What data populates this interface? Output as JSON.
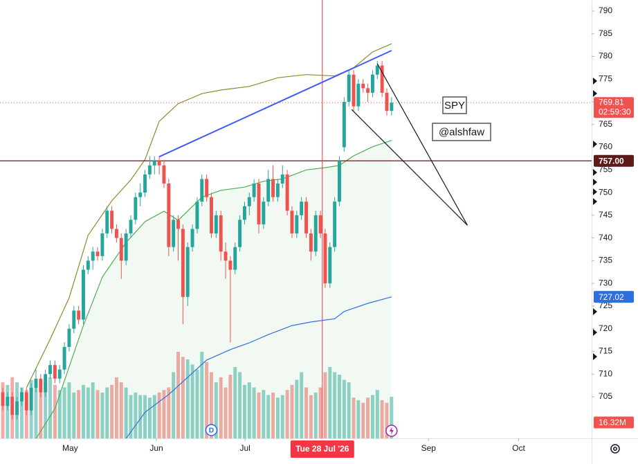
{
  "chart_data": {
    "type": "candlestick",
    "xlim": [
      -0.584,
      124.2
    ],
    "ylim": [
      695.84,
      792.44
    ],
    "yticks": [
      705,
      710,
      715,
      720,
      725,
      730,
      735,
      740,
      745,
      750,
      755,
      760,
      765,
      770,
      775,
      780,
      785,
      790
    ],
    "xticks": [
      {
        "value": 14.2,
        "label": "May"
      },
      {
        "value": 32.4,
        "label": "Jun"
      },
      {
        "value": 51.1,
        "label": "Jul"
      },
      {
        "value": 89.8,
        "label": "Sep"
      },
      {
        "value": 108.8,
        "label": "Oct"
      }
    ],
    "grid": false,
    "up_color": "#26a69a",
    "down_color": "#ef5350",
    "candles": [
      [
        706,
        707,
        702,
        703
      ],
      [
        703,
        706,
        702,
        705
      ],
      [
        705,
        706,
        700,
        701
      ],
      [
        701,
        705,
        700,
        704
      ],
      [
        704,
        707,
        703,
        706
      ],
      [
        706,
        707,
        701,
        702
      ],
      [
        702,
        708,
        701,
        707
      ],
      [
        707,
        711,
        706,
        709
      ],
      [
        709,
        710,
        705,
        706
      ],
      [
        706,
        711,
        705,
        710
      ],
      [
        710,
        713,
        709,
        712
      ],
      [
        712,
        713,
        708,
        709
      ],
      [
        709,
        712,
        708,
        711
      ],
      [
        711,
        717,
        710,
        716
      ],
      [
        716,
        721,
        715,
        720
      ],
      [
        720,
        725,
        719,
        724
      ],
      [
        724,
        725,
        721,
        722
      ],
      [
        722,
        734,
        721,
        733
      ],
      [
        733,
        736,
        732,
        735
      ],
      [
        735,
        738,
        733,
        737
      ],
      [
        737,
        738,
        735,
        736
      ],
      [
        736,
        742,
        735,
        741
      ],
      [
        741,
        747,
        740,
        746
      ],
      [
        746,
        747,
        741,
        742
      ],
      [
        742,
        743,
        739,
        740
      ],
      [
        740,
        741,
        731,
        735
      ],
      [
        735,
        742,
        734,
        741
      ],
      [
        741,
        745,
        740,
        744
      ],
      [
        744,
        750,
        743,
        749
      ],
      [
        749,
        752,
        747,
        750
      ],
      [
        750,
        755,
        749,
        754
      ],
      [
        754,
        758,
        753,
        756
      ],
      [
        756,
        758,
        754,
        757
      ],
      [
        757,
        758,
        754,
        756
      ],
      [
        756,
        757,
        751,
        752
      ],
      [
        752,
        753,
        736,
        738
      ],
      [
        738,
        745,
        737,
        744
      ],
      [
        744,
        745,
        735,
        742
      ],
      [
        742,
        743,
        721,
        727
      ],
      [
        727,
        739,
        725,
        738
      ],
      [
        738,
        743,
        737,
        742
      ],
      [
        742,
        749,
        741,
        748
      ],
      [
        748,
        754,
        747,
        753
      ],
      [
        753,
        754,
        748,
        749
      ],
      [
        749,
        750,
        740,
        741
      ],
      [
        741,
        746,
        740,
        745
      ],
      [
        745,
        746,
        735,
        737
      ],
      [
        737,
        739,
        731,
        735
      ],
      [
        735,
        736,
        717,
        733
      ],
      [
        733,
        739,
        732,
        738
      ],
      [
        738,
        745,
        737,
        744
      ],
      [
        744,
        748,
        743,
        747
      ],
      [
        747,
        750,
        745,
        749
      ],
      [
        749,
        753,
        748,
        752
      ],
      [
        752,
        753,
        741,
        743
      ],
      [
        743,
        749,
        742,
        748
      ],
      [
        748,
        755,
        747,
        753
      ],
      [
        753,
        756,
        748,
        749
      ],
      [
        749,
        753,
        748,
        752
      ],
      [
        752,
        756,
        751,
        754
      ],
      [
        754,
        755,
        745,
        746
      ],
      [
        746,
        747,
        740,
        741
      ],
      [
        741,
        746,
        740,
        745
      ],
      [
        745,
        749,
        744,
        748
      ],
      [
        748,
        749,
        740,
        741
      ],
      [
        741,
        742,
        735,
        737
      ],
      [
        737,
        746,
        736,
        745
      ],
      [
        745,
        746,
        740,
        741
      ],
      [
        741,
        742,
        729,
        730
      ],
      [
        730,
        739,
        729,
        738
      ],
      [
        738,
        749,
        737,
        748
      ],
      [
        748,
        758,
        747,
        757
      ],
      [
        760,
        771,
        759,
        770
      ],
      [
        770,
        777,
        769,
        776
      ],
      [
        776,
        777,
        768,
        769
      ],
      [
        769,
        775,
        768,
        774
      ],
      [
        774,
        775,
        772,
        773
      ],
      [
        773,
        774,
        770,
        772
      ],
      [
        772,
        777,
        771,
        776
      ],
      [
        776,
        779,
        775,
        778
      ],
      [
        778,
        779,
        771,
        772
      ],
      [
        772,
        773,
        767,
        768
      ],
      [
        768,
        771,
        767,
        769.81
      ]
    ],
    "volumes": [
      22,
      21,
      24,
      22,
      20,
      19,
      23,
      21,
      20,
      22,
      24,
      21,
      19,
      20,
      22,
      18,
      19,
      21,
      20,
      22,
      19,
      18,
      20,
      21,
      24,
      22,
      20,
      17,
      18,
      17,
      17,
      16,
      17,
      18,
      19,
      20,
      26,
      34,
      32,
      31,
      29,
      27,
      34,
      30,
      26,
      22,
      24,
      20,
      25,
      28,
      26,
      21,
      22,
      20,
      18,
      19,
      17,
      18,
      16,
      17,
      19,
      21,
      23,
      26,
      20,
      17,
      18,
      20,
      26,
      28,
      26,
      25,
      23,
      22,
      16,
      15,
      14,
      16,
      17,
      19,
      15,
      14,
      16.32
    ],
    "volume_value_labels": {
      "82": "16.32M"
    },
    "countdown": "02:59:30",
    "crosshair": {
      "value": 67.4,
      "label": "Tue 28 Jul '26",
      "color": "#f23645"
    },
    "hline": {
      "value": {
        "value": 757,
        "label": "757.00"
      },
      "color": "#5d1a1a"
    },
    "lines": [
      {
        "color": "#8a8a2e",
        "x": [
          5,
          10,
          14,
          18,
          23,
          27,
          30,
          33,
          37,
          42,
          46,
          52,
          58,
          64,
          70,
          74,
          78,
          82
        ],
        "values": [
          707,
          717.7,
          726.8,
          740.6,
          748.2,
          752.8,
          757.3,
          765.7,
          769.6,
          771.8,
          772.6,
          773.4,
          775.3,
          776,
          775.7,
          777.5,
          781,
          782.8
        ]
      },
      {
        "color": "#4caf50",
        "fill": "rgba(76,175,80,0.07)",
        "x": [
          7,
          11,
          14,
          17,
          21,
          26,
          30,
          34,
          37,
          42,
          46,
          51,
          55,
          59,
          64,
          68,
          71,
          74,
          78,
          82
        ],
        "values": [
          695.8,
          702.4,
          711.6,
          720.7,
          731.4,
          739,
          743.6,
          745.9,
          743.9,
          749,
          750.5,
          751.2,
          752.5,
          753,
          755,
          755.5,
          756,
          758.1,
          760.1,
          761.5
        ]
      },
      {
        "color": "#2e6fe0",
        "x": [
          26,
          30,
          35,
          39,
          43,
          48,
          52,
          56,
          61,
          65,
          70,
          72,
          77,
          82
        ],
        "values": [
          695.8,
          701.6,
          705.5,
          709.3,
          713.1,
          715.4,
          716.9,
          718.7,
          720.7,
          721.5,
          722.2,
          723.8,
          725.6,
          727.02
        ]
      }
    ],
    "trendlines": [
      {
        "color": "#3d5afe",
        "x": [
          33,
          82
        ],
        "values": [
          757.9,
          781.3
        ]
      },
      {
        "color": "#131722",
        "x": [
          79,
          98
        ],
        "values": [
          778.4,
          742.8
        ]
      },
      {
        "color": "#131722",
        "x": [
          73.6,
          98
        ],
        "values": [
          768.3,
          742.8
        ]
      }
    ],
    "annotations": [
      "SPY",
      "@alshfaw"
    ],
    "markers": [
      {
        "label": "D",
        "x": 44
      }
    ]
  }
}
